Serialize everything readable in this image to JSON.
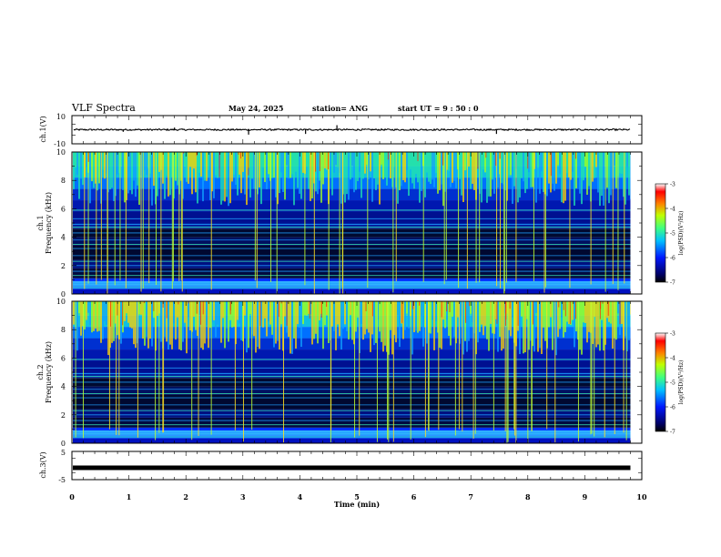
{
  "header": {
    "title": "VLF Spectra",
    "date": "May 24, 2025",
    "station": "station= ANG",
    "start": "start  UT  =   9  : 50 : 0"
  },
  "chart_data": [
    {
      "type": "line",
      "name": "ch1-waveform",
      "ylabel": "ch.1(V)",
      "ylim": [
        -10,
        10
      ],
      "ytick_labels": [
        "10",
        "-10"
      ],
      "baseline": 0,
      "spikes_min": [
        0.9,
        1.8,
        3.1,
        4.1,
        4.65,
        7.45
      ],
      "spike_values": [
        -1.5,
        1.5,
        -3.5,
        -3.0,
        3.2,
        -3.0
      ],
      "x_range_min": [
        0,
        9.8
      ]
    },
    {
      "type": "heatmap",
      "name": "ch1-spectrogram",
      "ylabel_top": "ch.1",
      "ylabel": "Frequency (kHz)",
      "ylim": [
        0,
        10
      ],
      "yticks": [
        0,
        2,
        4,
        6,
        8,
        10
      ],
      "colorbar": {
        "label": "log(PSD)(V²/Hz)",
        "range": [
          -7,
          -3
        ],
        "ticks": [
          -7,
          -6,
          -5,
          -4,
          -3
        ]
      },
      "x_range_min": [
        0,
        9.8
      ]
    },
    {
      "type": "heatmap",
      "name": "ch2-spectrogram",
      "ylabel_top": "ch.2",
      "ylabel": "Frequency (kHz)",
      "ylim": [
        0,
        10
      ],
      "yticks": [
        0,
        2,
        4,
        6,
        8,
        10
      ],
      "colorbar": {
        "label": "log(PSD)(V²/Hz)",
        "range": [
          -7,
          -3
        ],
        "ticks": [
          -7,
          -6,
          -5,
          -4,
          -3
        ]
      },
      "x_range_min": [
        0,
        9.8
      ]
    },
    {
      "type": "line",
      "name": "ch3-waveform",
      "ylabel": "ch.3(V)",
      "ylim": [
        -5,
        5
      ],
      "ytick_labels": [
        "5",
        "-5"
      ],
      "baseline": -0.8,
      "x_range_min": [
        0,
        9.8
      ]
    }
  ],
  "xaxis": {
    "label": "Time  (min)",
    "ticks": [
      "0",
      "1",
      "2",
      "3",
      "4",
      "5",
      "6",
      "7",
      "8",
      "9",
      "10"
    ],
    "range": [
      0,
      10
    ]
  },
  "colors": {
    "low": "#000033",
    "mid_low": "#0020ff",
    "mid": "#20e0c0",
    "mid_high": "#60ff40",
    "high": "#ffe000",
    "peak": "#ff2000",
    "top": "#ffffff"
  }
}
